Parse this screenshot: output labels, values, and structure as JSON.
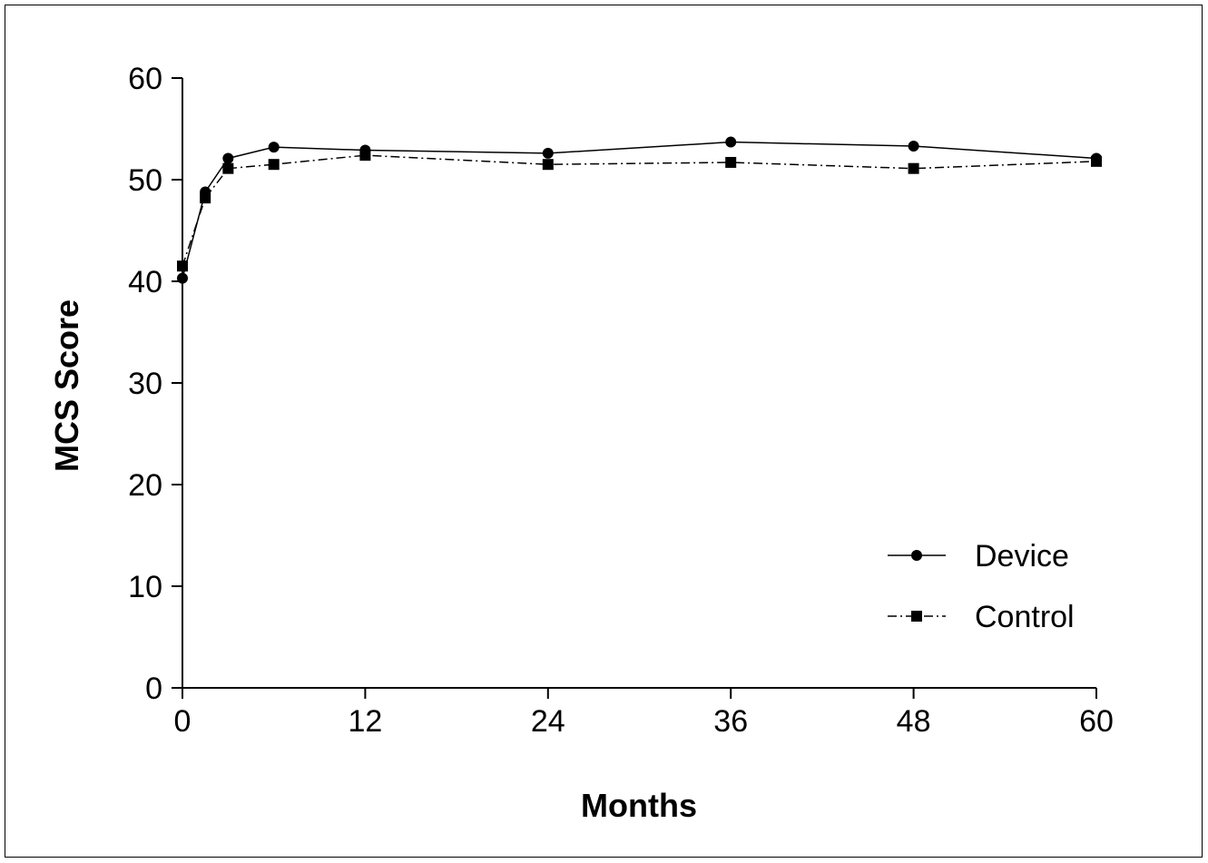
{
  "chart_data": {
    "type": "line",
    "xlabel": "Months",
    "ylabel": "MCS Score",
    "xlim": [
      0,
      60
    ],
    "ylim": [
      0,
      60
    ],
    "x_ticks": [
      "0",
      "12",
      "24",
      "36",
      "48",
      "60"
    ],
    "y_ticks": [
      "0",
      "10",
      "20",
      "30",
      "40",
      "50",
      "60"
    ],
    "grid": false,
    "legend_position": "bottom-right",
    "series": [
      {
        "name": "Device",
        "marker": "circle",
        "line_style": "solid",
        "x": [
          0,
          1.5,
          3,
          6,
          12,
          24,
          36,
          48,
          60
        ],
        "y": [
          40.3,
          48.8,
          52.1,
          53.2,
          52.9,
          52.6,
          53.7,
          53.3,
          52.1
        ]
      },
      {
        "name": "Control",
        "marker": "square",
        "line_style": "dash-dot",
        "x": [
          0,
          1.5,
          3,
          6,
          12,
          24,
          36,
          48,
          60
        ],
        "y": [
          41.5,
          48.2,
          51.1,
          51.5,
          52.4,
          51.5,
          51.7,
          51.1,
          51.8
        ]
      }
    ]
  }
}
